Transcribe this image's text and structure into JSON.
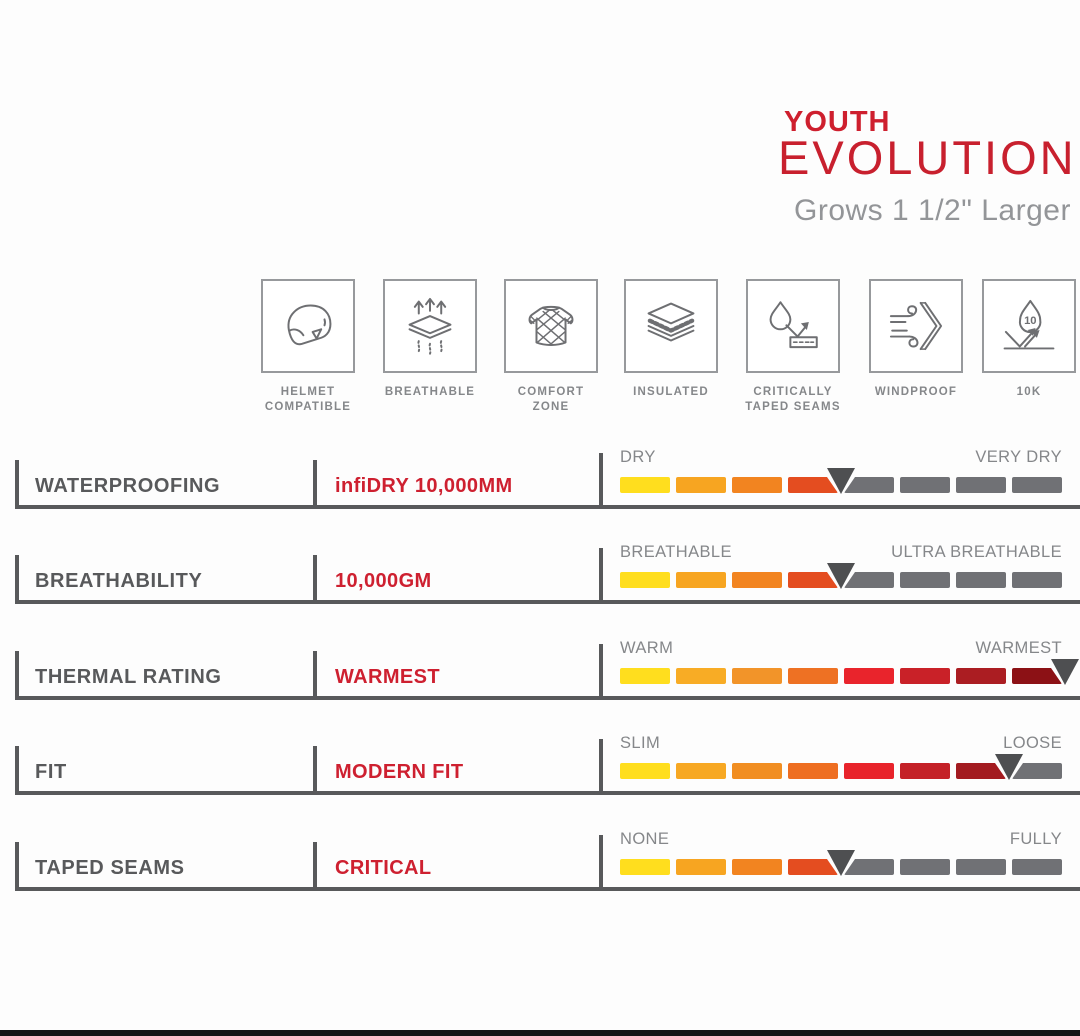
{
  "header": {
    "brand_top": "YOUTH",
    "brand_bottom": "EVOLUTION",
    "tagline": "Grows 1 1/2\" Larger",
    "brand_color": "#CE1F2E",
    "tagline_color": "#939598"
  },
  "features": {
    "items": [
      {
        "icon": "helmet-compatible-icon",
        "label": "HELMET\nCOMPATIBLE"
      },
      {
        "icon": "breathable-icon",
        "label": "BREATHABLE"
      },
      {
        "icon": "comfort-zone-icon",
        "label": "COMFORT\nZONE"
      },
      {
        "icon": "insulated-icon",
        "label": "INSULATED"
      },
      {
        "icon": "critically-taped-seams-icon",
        "label": "CRITICALLY\nTAPED SEAMS"
      },
      {
        "icon": "windproof-icon",
        "label": "WINDPROOF"
      },
      {
        "icon": "10k-icon",
        "label": "10K"
      }
    ]
  },
  "specs": {
    "label_color": "#58595B",
    "value_color": "#CE2030",
    "scale_label_color": "#85878A",
    "line_color": "#58595B",
    "marker_color": "#4E4F51",
    "inactive_segment_color": "#707175",
    "rows": [
      {
        "label": "WATERPROOFING",
        "value": "infiDRY 10,000MM",
        "scale_left": "DRY",
        "scale_right": "VERY DRY",
        "marker_after": 4,
        "segments": [
          "#FFDE1E",
          "#F7A521",
          "#F28420",
          "#E44D20",
          "#707175",
          "#707175",
          "#707175",
          "#707175"
        ]
      },
      {
        "label": "BREATHABILITY",
        "value": "10,000GM",
        "scale_left": "BREATHABLE",
        "scale_right": "ULTRA BREATHABLE",
        "marker_after": 4,
        "segments": [
          "#FFDE1E",
          "#F7A521",
          "#F28420",
          "#E44D20",
          "#707175",
          "#707175",
          "#707175",
          "#707175"
        ]
      },
      {
        "label": "THERMAL RATING",
        "value": "WARMEST",
        "scale_left": "WARM",
        "scale_right": "WARMEST",
        "marker_after": 8,
        "segments": [
          "#FFDE1E",
          "#F8AC25",
          "#F29429",
          "#EE7123",
          "#E9242C",
          "#C92128",
          "#AB1D22",
          "#8C1115"
        ]
      },
      {
        "label": "FIT",
        "value": "MODERN FIT",
        "scale_left": "SLIM",
        "scale_right": "LOOSE",
        "marker_after": 7,
        "segments": [
          "#FFDE1E",
          "#F7A823",
          "#F18E22",
          "#EE6E21",
          "#E8232B",
          "#C42127",
          "#A31B20",
          "#707175"
        ]
      },
      {
        "label": "TAPED SEAMS",
        "value": "CRITICAL",
        "scale_left": "NONE",
        "scale_right": "FULLY",
        "marker_after": 4,
        "segments": [
          "#FFDE1E",
          "#F7A521",
          "#F28420",
          "#E44D20",
          "#707175",
          "#707175",
          "#707175",
          "#707175"
        ]
      }
    ]
  }
}
